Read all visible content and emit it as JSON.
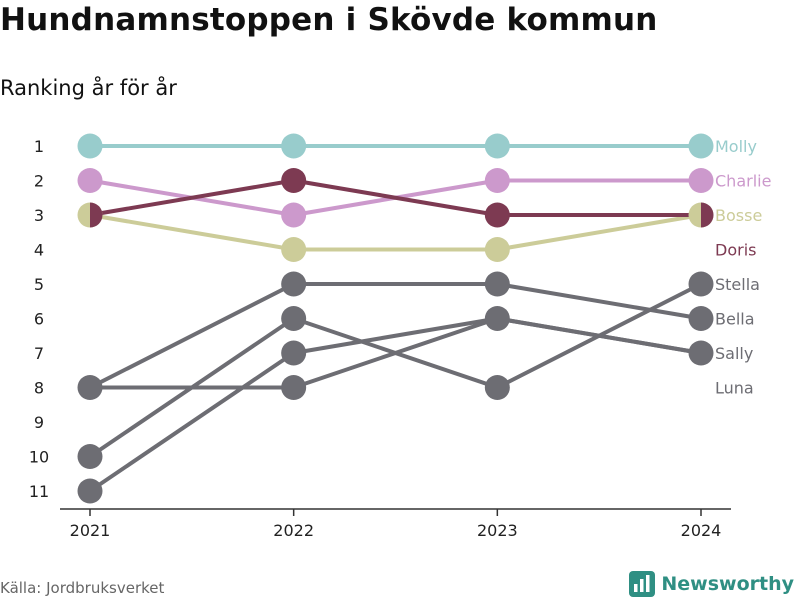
{
  "title": "Hundnamnstoppen i Skövde kommun",
  "subtitle": "Ranking år för år",
  "source": "Källa: Jordbruksverket",
  "brand": {
    "name": "Newsworthy",
    "icon": "bar-chart-logo-icon"
  },
  "chart_data": {
    "type": "line",
    "x": [
      "2021",
      "2022",
      "2023",
      "2024"
    ],
    "y_ticks": [
      "1",
      "2",
      "3",
      "4",
      "5",
      "6",
      "7",
      "8",
      "9",
      "10",
      "11"
    ],
    "y_range": [
      1,
      11
    ],
    "y_reversed": true,
    "grid": false,
    "legend": "right-end-labels",
    "series": [
      {
        "name": "Molly",
        "values": [
          1,
          1,
          1,
          1
        ],
        "color": "#98cccc",
        "highlight": true
      },
      {
        "name": "Charlie",
        "values": [
          2,
          3,
          2,
          2
        ],
        "color": "#cc99cc",
        "highlight": true
      },
      {
        "name": "Bosse",
        "values": [
          3,
          4,
          4,
          3
        ],
        "color": "#cccc99",
        "highlight": true
      },
      {
        "name": "Doris",
        "values": [
          3,
          2,
          3,
          3
        ],
        "color": "#7d3a52",
        "highlight": true
      },
      {
        "name": "Stella",
        "values": [
          10,
          6,
          8,
          5
        ],
        "color": "#6d6d73",
        "highlight": false
      },
      {
        "name": "Bella",
        "values": [
          8,
          5,
          5,
          6
        ],
        "color": "#6d6d73",
        "highlight": false
      },
      {
        "name": "Sally",
        "values": [
          8,
          8,
          6,
          7
        ],
        "color": "#6d6d73",
        "highlight": false
      },
      {
        "name": "Luna",
        "values": [
          11,
          7,
          6,
          7
        ],
        "color": "#6d6d73",
        "highlight": false
      }
    ]
  }
}
